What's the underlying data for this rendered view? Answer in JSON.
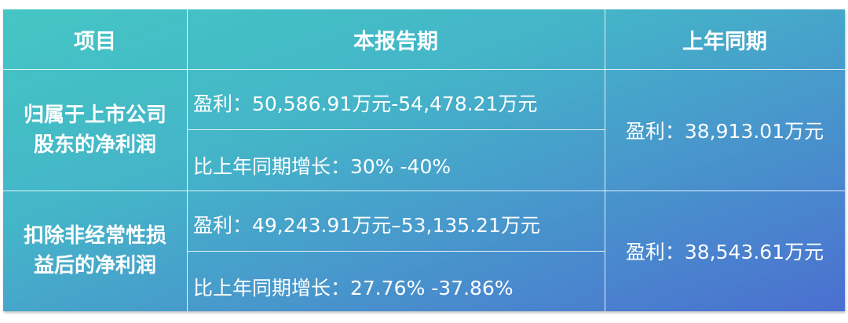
{
  "header": {
    "item": "项目",
    "current": "本报告期",
    "previous": "上年同期"
  },
  "rows": [
    {
      "item_line1": "归属于上市公司",
      "item_line2": "股东的净利润",
      "current_profit": "盈利：50,586.91万元-54,478.21万元",
      "current_growth": "比上年同期增长：30% -40%",
      "previous_profit": "盈利：38,913.01万元"
    },
    {
      "item_line1": "扣除非经常性损",
      "item_line2": "益后的净利润",
      "current_profit": "盈利：49,243.91万元–53,135.21万元",
      "current_growth": "比上年同期增长：27.76% -37.86%",
      "previous_profit": "盈利：38,543.61万元"
    }
  ],
  "colors": {
    "gradient_start": "#45c6c4",
    "gradient_end": "#4b6fd0",
    "text": "#ffffff"
  }
}
